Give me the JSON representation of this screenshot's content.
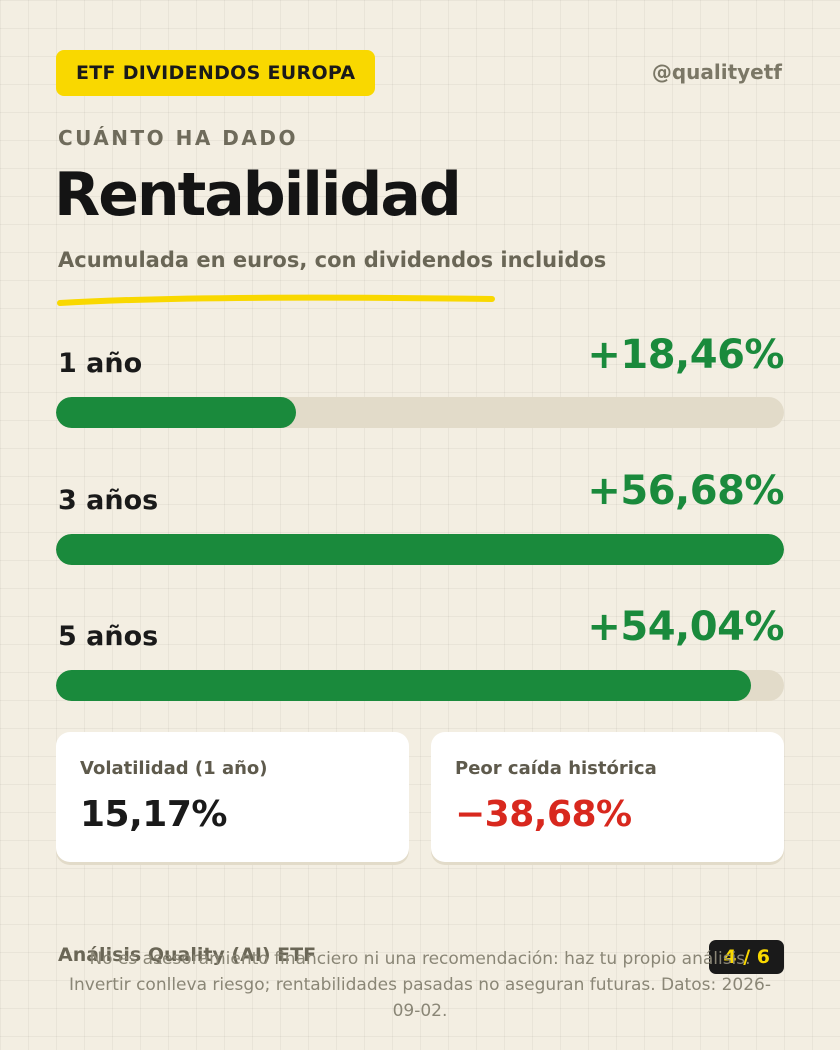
{
  "header": {
    "tag": "ETF DIVIDENDOS EUROPA",
    "handle": "@qualityetf",
    "kicker": "CUÁNTO HA DADO",
    "title": "Rentabilidad",
    "subtitle": "Acumulada en euros, con dividendos incluidos"
  },
  "returns": [
    {
      "label": "1 año",
      "value": "+18,46%",
      "bar_fraction": 0.33
    },
    {
      "label": "3 años",
      "value": "+56,68%",
      "bar_fraction": 1.0
    },
    {
      "label": "5 años",
      "value": "+54,04%",
      "bar_fraction": 0.954
    }
  ],
  "stats": {
    "volatility": {
      "label": "Volatilidad (1 año)",
      "value": "15,17%"
    },
    "drawdown": {
      "label": "Peor caída histórica",
      "value": "−38,68%"
    }
  },
  "footer": {
    "brand": "Análisis Quality (AI) ETF",
    "page": "4 / 6",
    "disclaimer": "No es asesoramiento financiero ni una recomendación: haz tu propio análisis. Invertir conlleva riesgo; rentabilidades pasadas no aseguran futuras. Datos: 2026-09-02."
  },
  "colors": {
    "accent_yellow": "#f9d800",
    "positive_green": "#1a8a3c",
    "negative_red": "#d8281e",
    "background": "#f3eee2"
  }
}
